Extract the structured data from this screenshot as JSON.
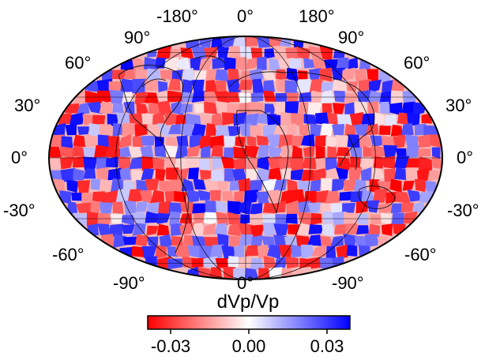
{
  "map": {
    "title": "dVp/Vp",
    "projection": "global elliptical (Hammer-like)",
    "top_labels": {
      "left": "-180°",
      "center": "0°",
      "right": "180°",
      "upper_left_corner": "90°",
      "upper_right_corner": "90°"
    },
    "left_lat_labels": [
      "60°",
      "30°",
      "0°",
      "-30°",
      "-60°"
    ],
    "right_lat_labels": [
      "60°",
      "30°",
      "0°",
      "-30°",
      "-60°"
    ],
    "bottom_labels": {
      "left": "-90°",
      "center": "0°",
      "right": "-90°"
    }
  },
  "colorbar": {
    "label": "dVp/Vp",
    "ticks": [
      "-0.03",
      "0.00",
      "0.03"
    ],
    "range": [
      -0.04,
      0.04
    ],
    "colors": [
      "#ff0000",
      "#ffffff",
      "#0000ff"
    ]
  },
  "chart_data": {
    "type": "heatmap",
    "title": "",
    "xlabel": "",
    "ylabel": "",
    "colorbar_label": "dVp/Vp",
    "colorbar_ticks": [
      -0.03,
      0.0,
      0.03
    ],
    "value_range": [
      -0.04,
      0.04
    ],
    "colormap": [
      "#ff0000",
      "#ffffff",
      "#0000ff"
    ]
  }
}
